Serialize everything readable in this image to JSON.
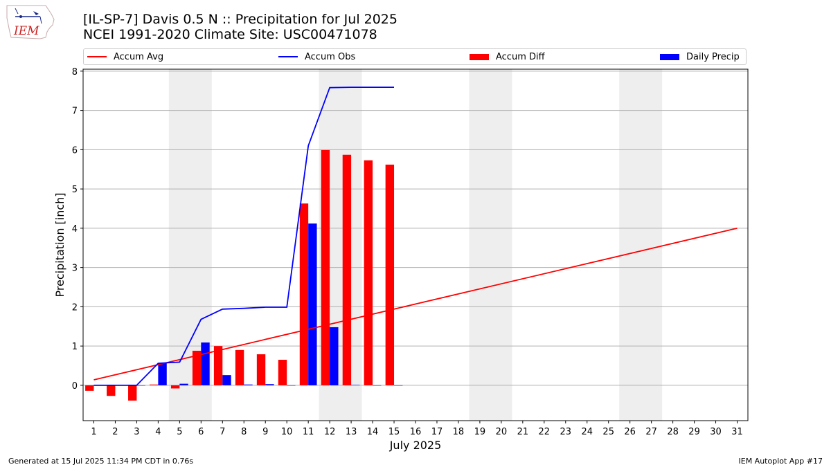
{
  "header": {
    "title_line1": "[IL-SP-7] Davis 0.5 N :: Precipitation for Jul 2025",
    "title_line2": "NCEI 1991-2020 Climate Site: USC00471078"
  },
  "logo": {
    "text": "IEM"
  },
  "footer": {
    "generated": "Generated at 15 Jul 2025 11:34 PM CDT in 0.76s",
    "app": "IEM Autoplot App #17"
  },
  "colors": {
    "avg": "#ff0000",
    "obs": "#0000ff",
    "diff": "#ff0000",
    "daily": "#0000ff",
    "weekend_shade": "#eeeeee",
    "grid": "#b0b0b0"
  },
  "chart_data": {
    "type": "bar",
    "xlabel": "July 2025",
    "ylabel": "Precipitation [inch]",
    "ylim": [
      -0.9,
      8.05
    ],
    "xlim": [
      0.5,
      31.5
    ],
    "yticks": [
      0,
      1,
      2,
      3,
      4,
      5,
      6,
      7,
      8
    ],
    "days": [
      1,
      2,
      3,
      4,
      5,
      6,
      7,
      8,
      9,
      10,
      11,
      12,
      13,
      14,
      15,
      16,
      17,
      18,
      19,
      20,
      21,
      22,
      23,
      24,
      25,
      26,
      27,
      28,
      29,
      30,
      31
    ],
    "weekend_shading": [
      [
        4.5,
        6.5
      ],
      [
        11.5,
        13.5
      ],
      [
        18.5,
        20.5
      ],
      [
        25.5,
        27.5
      ]
    ],
    "grid": "horizontal",
    "legend_position": "top",
    "series": [
      {
        "name": "Accum Avg",
        "kind": "line",
        "x": [
          1,
          31
        ],
        "values": [
          0.14,
          4.0
        ]
      },
      {
        "name": "Accum Obs",
        "kind": "line",
        "x": [
          1,
          2,
          3,
          4,
          5,
          6,
          7,
          8,
          9,
          10,
          11,
          12,
          13,
          14,
          15
        ],
        "values": [
          0.0,
          0.0,
          0.0,
          0.56,
          0.59,
          1.68,
          1.94,
          1.96,
          1.99,
          1.99,
          6.1,
          7.58,
          7.59,
          7.59,
          7.59
        ]
      },
      {
        "name": "Accum Diff",
        "kind": "bar",
        "x": [
          1,
          2,
          3,
          4,
          5,
          6,
          7,
          8,
          9,
          10,
          11,
          12,
          13,
          14,
          15
        ],
        "values": [
          -0.14,
          -0.27,
          -0.39,
          0.02,
          -0.08,
          0.88,
          1.0,
          0.9,
          0.79,
          0.65,
          4.63,
          5.99,
          5.87,
          5.73,
          5.62
        ]
      },
      {
        "name": "Daily Precip",
        "kind": "bar",
        "x": [
          1,
          2,
          3,
          4,
          5,
          6,
          7,
          8,
          9,
          10,
          11,
          12,
          13,
          14,
          15
        ],
        "values": [
          0.0,
          0.0,
          0.0,
          0.56,
          0.04,
          1.09,
          0.26,
          0.02,
          0.03,
          0.0,
          4.12,
          1.48,
          0.01,
          0.0,
          0.0
        ]
      }
    ]
  }
}
